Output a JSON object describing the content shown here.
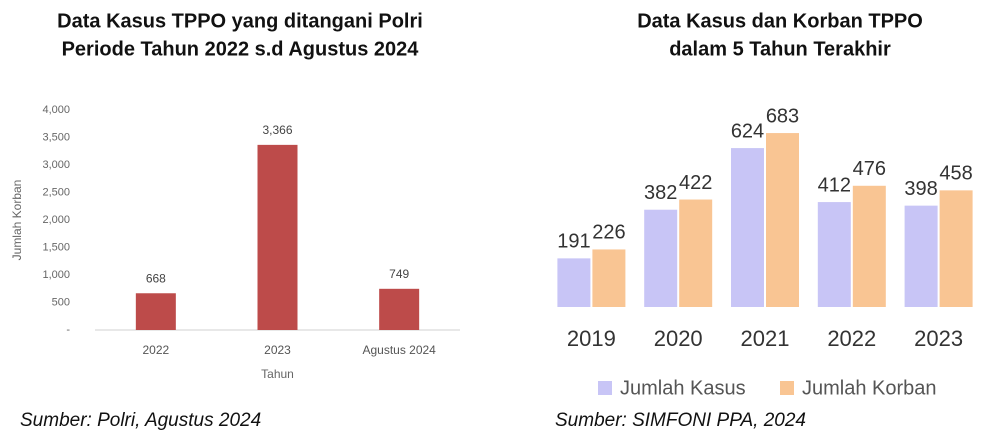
{
  "chart_data": [
    {
      "type": "bar",
      "title": [
        "Data Kasus TPPO yang ditangani Polri",
        "Periode Tahun 2022 s.d Agustus 2024"
      ],
      "y_label": "Jumlah Korban",
      "x_label": "Tahun",
      "categories": [
        "2022",
        "2023",
        "Agustus 2024"
      ],
      "values": [
        668,
        3366,
        749
      ],
      "value_labels": [
        "668",
        "3,366",
        "749"
      ],
      "color": "#bd4b4a",
      "ylim": [
        0,
        4000
      ],
      "yticks": [
        {
          "value": 0,
          "label": "-"
        },
        500,
        {
          "value": 1000,
          "label": "1,000"
        },
        {
          "value": 1500,
          "label": "1,500"
        },
        {
          "value": 2000,
          "label": "2,000"
        },
        {
          "value": 2500,
          "label": "2,500"
        },
        {
          "value": 3000,
          "label": "3,000"
        },
        {
          "value": 3500,
          "label": "3,500"
        },
        {
          "value": 4000,
          "label": "4,000"
        }
      ],
      "source": "Sumber: Polri, Agustus 2024"
    },
    {
      "type": "grouped_bar",
      "title": [
        "Data Kasus dan Korban TPPO",
        "dalam 5 Tahun Terakhir"
      ],
      "categories": [
        "2019",
        "2020",
        "2021",
        "2022",
        "2023"
      ],
      "series": [
        {
          "name": "Jumlah Kasus",
          "color": "#c8c5f6",
          "values": [
            191,
            382,
            624,
            412,
            398
          ]
        },
        {
          "name": "Jumlah Korban",
          "color": "#f9c593",
          "values": [
            226,
            422,
            683,
            476,
            458
          ]
        }
      ],
      "ylim": [
        0,
        750
      ],
      "legend": "bottom",
      "source": "Sumber: SIMFONI PPA, 2024"
    }
  ]
}
